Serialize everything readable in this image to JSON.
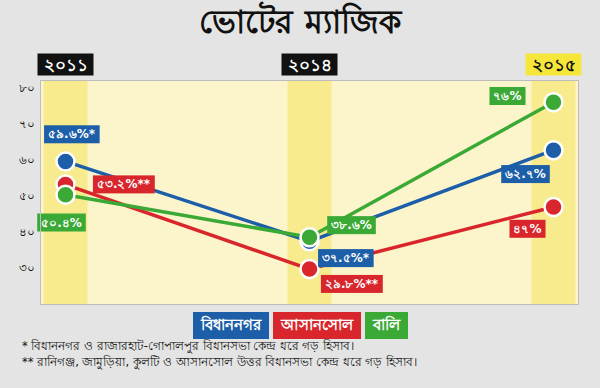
{
  "chart_data": {
    "type": "line",
    "title": "ভোটের ম্যাজিক",
    "categories": [
      "২০১১",
      "২০১৪",
      "২০১৫"
    ],
    "series": [
      {
        "name": "বিধাননগর",
        "color": "#1c5ea8",
        "marker": "circle",
        "values": [
          59.6,
          37.5,
          62.7
        ],
        "value_labels": [
          "৫৯.৬%*",
          "৩৭.৫%*",
          "৬২.৭%"
        ]
      },
      {
        "name": "আসানসোল",
        "color": "#d8262c",
        "marker": "circle",
        "values": [
          53.2,
          29.8,
          47
        ],
        "value_labels": [
          "৫৩.২%**",
          "২৯.৮%**",
          "৪৭%"
        ]
      },
      {
        "name": "বালি",
        "color": "#3aa935",
        "marker": "circle",
        "values": [
          50.4,
          38.6,
          76
        ],
        "value_labels": [
          "৫০.৪%",
          "৩৮.৬%",
          "৭৬%"
        ]
      }
    ],
    "ylim": [
      20,
      82
    ],
    "yticks": [
      {
        "value": 30,
        "label": "৩০"
      },
      {
        "value": 40,
        "label": "৪০"
      },
      {
        "value": 50,
        "label": "৫০"
      },
      {
        "value": 60,
        "label": "৬০"
      },
      {
        "value": 70,
        "label": "৭০"
      },
      {
        "value": 80,
        "label": "৮০"
      }
    ],
    "grid": false,
    "data_labels": true,
    "legend": "bottom",
    "footnotes": [
      "* বিধাননগর ও রাজারহাট-গোপালপুর বিধানসভা কেন্দ্র ধরে গড় হিসাব।",
      "** রানিগঞ্জ, জামুড়িয়া, কুলটি ও আসানসোল উত্তর বিধানসভা কেন্দ্র ধরে গড় হিসাব।"
    ]
  }
}
